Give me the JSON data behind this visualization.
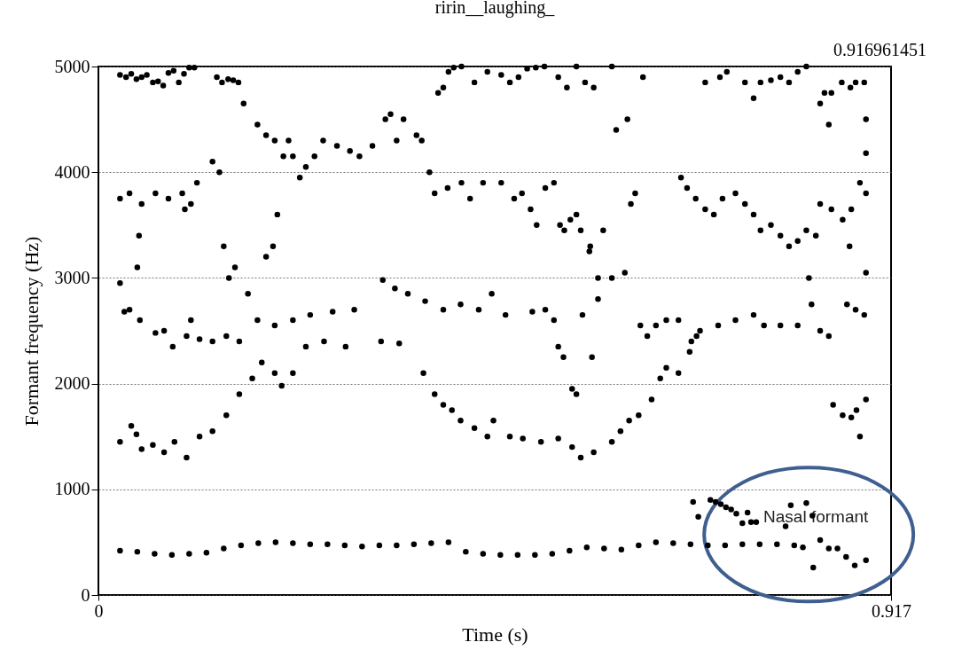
{
  "chart_data": {
    "type": "scatter",
    "title": "ririn__laughing_",
    "xlabel": "Time (s)",
    "ylabel": "Formant frequency (Hz)",
    "xlim": [
      0,
      0.917
    ],
    "xticks": [
      0,
      0.917
    ],
    "ylim": [
      0,
      5000
    ],
    "yticks": [
      0,
      1000,
      2000,
      3000,
      4000,
      5000
    ],
    "grid": "y",
    "legend": false,
    "marker": "circle",
    "annotations": [
      "0.916961451",
      {
        "text": "Nasal formant",
        "x": 0.83,
        "y": 740
      }
    ],
    "series": [
      {
        "color": "#000000",
        "x": [
          0.025,
          0.045,
          0.065,
          0.085,
          0.105,
          0.125,
          0.145,
          0.165,
          0.185,
          0.205,
          0.225,
          0.245,
          0.265,
          0.285,
          0.305,
          0.325,
          0.345,
          0.365,
          0.385,
          0.405,
          0.425,
          0.445,
          0.465,
          0.485,
          0.505,
          0.525,
          0.545,
          0.565,
          0.585,
          0.605,
          0.625,
          0.645,
          0.665,
          0.685,
          0.705,
          0.725,
          0.745,
          0.765,
          0.785,
          0.805,
          0.815,
          0.827,
          0.835,
          0.845,
          0.855,
          0.865,
          0.875,
          0.888
        ],
        "values": [
          420,
          410,
          390,
          380,
          390,
          400,
          440,
          470,
          490,
          500,
          490,
          480,
          480,
          470,
          460,
          470,
          470,
          480,
          490,
          500,
          410,
          390,
          380,
          380,
          380,
          390,
          420,
          450,
          440,
          430,
          470,
          500,
          490,
          480,
          470,
          470,
          480,
          480,
          480,
          470,
          450,
          260,
          520,
          440,
          440,
          360,
          280,
          330
        ]
      },
      {
        "color": "#000000",
        "x": [
          0.025,
          0.038,
          0.044,
          0.05,
          0.063,
          0.076,
          0.088,
          0.102,
          0.117,
          0.132,
          0.148,
          0.163,
          0.178,
          0.189,
          0.204,
          0.212,
          0.225,
          0.24,
          0.261,
          0.286,
          0.327,
          0.348,
          0.376,
          0.389,
          0.399,
          0.409,
          0.419,
          0.435,
          0.45,
          0.457,
          0.476,
          0.491,
          0.512,
          0.532,
          0.548,
          0.558,
          0.573,
          0.594,
          0.604,
          0.614,
          0.625,
          0.64,
          0.65,
          0.657,
          0.671,
          0.684,
          0.692,
          0.85,
          0.861,
          0.871,
          0.877,
          0.881,
          0.888
        ],
        "values": [
          1450,
          1600,
          1520,
          1380,
          1420,
          1350,
          1450,
          1300,
          1500,
          1550,
          1700,
          1900,
          2050,
          2200,
          2100,
          1980,
          2100,
          2350,
          2400,
          2350,
          2400,
          2380,
          2100,
          1900,
          1800,
          1750,
          1650,
          1580,
          1500,
          1650,
          1500,
          1480,
          1450,
          1480,
          1400,
          1300,
          1350,
          1450,
          1550,
          1650,
          1700,
          1850,
          2050,
          2150,
          2100,
          2300,
          2450,
          1800,
          1700,
          1680,
          1750,
          1500,
          1850
        ]
      },
      {
        "color": "#000000",
        "x": [
          0.025,
          0.03,
          0.036,
          0.048,
          0.066,
          0.076,
          0.086,
          0.102,
          0.107,
          0.117,
          0.132,
          0.148,
          0.163,
          0.184,
          0.204,
          0.225,
          0.245,
          0.271,
          0.296,
          0.329,
          0.343,
          0.358,
          0.378,
          0.399,
          0.419,
          0.44,
          0.455,
          0.471,
          0.502,
          0.517,
          0.527,
          0.532,
          0.538,
          0.548,
          0.553,
          0.56,
          0.569,
          0.571,
          0.578,
          0.627,
          0.635,
          0.645,
          0.657,
          0.671,
          0.686,
          0.696,
          0.717,
          0.737,
          0.758,
          0.77,
          0.789,
          0.809,
          0.825,
          0.835,
          0.845,
          0.866,
          0.876,
          0.886,
          0.888
        ],
        "values": [
          2950,
          2680,
          2700,
          2600,
          2480,
          2500,
          2350,
          2450,
          2600,
          2420,
          2400,
          2450,
          2400,
          2600,
          2550,
          2600,
          2650,
          2680,
          2700,
          2980,
          2900,
          2850,
          2780,
          2700,
          2750,
          2700,
          2850,
          2650,
          2680,
          2700,
          2600,
          2350,
          2250,
          1950,
          1900,
          2650,
          3300,
          2250,
          2800,
          2550,
          2450,
          2550,
          2600,
          2600,
          2400,
          2500,
          2550,
          2600,
          2650,
          2550,
          2550,
          2550,
          2750,
          2500,
          2450,
          2750,
          2700,
          2650,
          3050
        ]
      },
      {
        "color": "#000000",
        "x": [
          0.025,
          0.036,
          0.045,
          0.047,
          0.05,
          0.066,
          0.081,
          0.097,
          0.1,
          0.107,
          0.114,
          0.132,
          0.14,
          0.145,
          0.151,
          0.158,
          0.173,
          0.194,
          0.202,
          0.207,
          0.168,
          0.184,
          0.194,
          0.204,
          0.214,
          0.22,
          0.225,
          0.233,
          0.24,
          0.25,
          0.26,
          0.276,
          0.291,
          0.302,
          0.317,
          0.332,
          0.338,
          0.345,
          0.353,
          0.368,
          0.374,
          0.383,
          0.389,
          0.404,
          0.42,
          0.43,
          0.445,
          0.466,
          0.481,
          0.49,
          0.5,
          0.507,
          0.517,
          0.527,
          0.534,
          0.539,
          0.546,
          0.553,
          0.558,
          0.568,
          0.578,
          0.584,
          0.594,
          0.609,
          0.616,
          0.621,
          0.674,
          0.681,
          0.691,
          0.702,
          0.712,
          0.722,
          0.737,
          0.748,
          0.758,
          0.766,
          0.778,
          0.789,
          0.799,
          0.809,
          0.819,
          0.822,
          0.83,
          0.835,
          0.848,
          0.861,
          0.869,
          0.871,
          0.881,
          0.888
        ],
        "values": [
          3750,
          3800,
          3100,
          3400,
          3700,
          3800,
          3750,
          3800,
          3650,
          3700,
          3900,
          4100,
          4000,
          3300,
          3000,
          3100,
          2850,
          3200,
          3300,
          3600,
          4650,
          4450,
          4350,
          4300,
          4150,
          4300,
          4150,
          3950,
          4050,
          4150,
          4300,
          4250,
          4200,
          4150,
          4250,
          4500,
          4550,
          4300,
          4500,
          4350,
          4300,
          4000,
          3800,
          3850,
          3900,
          3750,
          3900,
          3900,
          3750,
          3800,
          3650,
          3500,
          3850,
          3900,
          3500,
          3450,
          3550,
          3600,
          3450,
          3250,
          3000,
          3450,
          3000,
          3050,
          3700,
          3800,
          3950,
          3850,
          3750,
          3650,
          3600,
          3750,
          3800,
          3700,
          3600,
          3450,
          3500,
          3400,
          3300,
          3350,
          3450,
          3000,
          3400,
          3700,
          3650,
          3550,
          3300,
          3650,
          3900,
          3800
        ]
      },
      {
        "color": "#000000",
        "x": [
          0.025,
          0.032,
          0.038,
          0.044,
          0.05,
          0.056,
          0.063,
          0.069,
          0.075,
          0.081,
          0.087,
          0.093,
          0.099,
          0.105,
          0.111,
          0.137,
          0.143,
          0.15,
          0.156,
          0.162,
          0.393,
          0.399,
          0.405,
          0.411,
          0.42,
          0.435,
          0.45,
          0.466,
          0.476,
          0.486,
          0.496,
          0.506,
          0.516,
          0.532,
          0.542,
          0.553,
          0.563,
          0.573,
          0.594,
          0.599,
          0.612,
          0.63,
          0.702,
          0.719,
          0.727,
          0.748,
          0.758,
          0.766,
          0.778,
          0.789,
          0.799,
          0.809,
          0.819,
          0.835,
          0.84,
          0.848,
          0.86,
          0.845,
          0.87,
          0.876,
          0.886,
          0.888,
          0.888
        ],
        "values": [
          4920,
          4900,
          4930,
          4880,
          4900,
          4920,
          4850,
          4860,
          4820,
          4940,
          4960,
          4850,
          4930,
          4990,
          4990,
          4900,
          4850,
          4880,
          4870,
          4850,
          4750,
          4800,
          4950,
          4990,
          5000,
          4850,
          4950,
          4920,
          4850,
          4900,
          4980,
          4990,
          5000,
          4900,
          4800,
          5000,
          4850,
          4800,
          5000,
          4400,
          4500,
          4900,
          4850,
          4900,
          4950,
          4850,
          4700,
          4850,
          4870,
          4900,
          4850,
          4950,
          5000,
          4650,
          4750,
          4750,
          4850,
          4450,
          4800,
          4850,
          4850,
          4500,
          4180
        ]
      },
      {
        "color": "#000000",
        "x": [
          0.688,
          0.694,
          0.708,
          0.714,
          0.72,
          0.726,
          0.732,
          0.738,
          0.745,
          0.751,
          0.755,
          0.761,
          0.795,
          0.801,
          0.819,
          0.826
        ],
        "values": [
          880,
          740,
          900,
          880,
          860,
          830,
          810,
          770,
          680,
          780,
          690,
          690,
          650,
          850,
          870,
          750
        ]
      }
    ]
  }
}
